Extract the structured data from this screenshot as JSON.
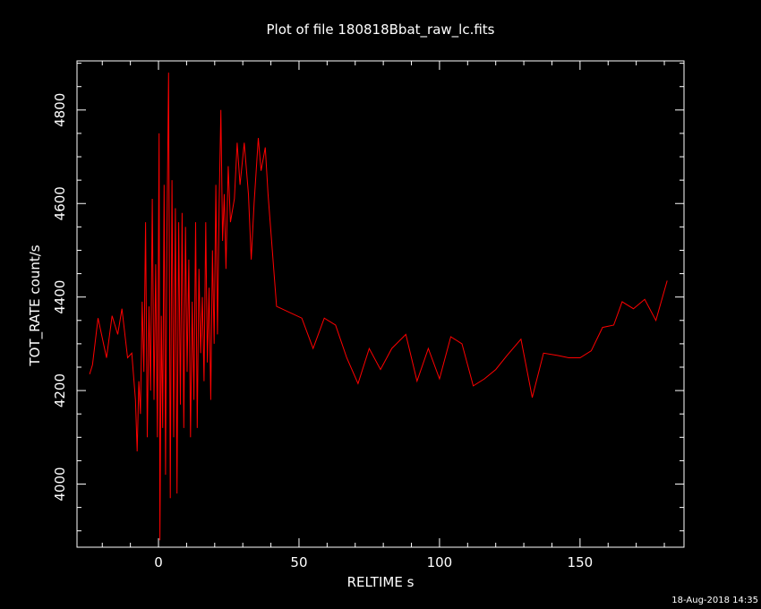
{
  "chart_data": {
    "type": "line",
    "title": "Plot of file 180818Bbat_raw_lc.fits",
    "xlabel": "RELTIME  s",
    "ylabel": "TOT_RATE  count/s",
    "timestamp": "18-Aug-2018 14:35",
    "xlim": [
      -29,
      187
    ],
    "ylim": [
      3865,
      4905
    ],
    "xticks": [
      0,
      50,
      100,
      150
    ],
    "yticks": [
      4000,
      4200,
      4400,
      4600,
      4800
    ],
    "minor_x": 10,
    "minor_y": 50,
    "grid": false,
    "colors": {
      "background": "#000000",
      "axes": "#ffffff",
      "series": "#ff0000"
    },
    "series": [
      {
        "values": [
          [
            -24.5,
            4235
          ],
          [
            -23.5,
            4255
          ],
          [
            -21.5,
            4355
          ],
          [
            -18.5,
            4270
          ],
          [
            -16.5,
            4360
          ],
          [
            -14.5,
            4320
          ],
          [
            -13,
            4375
          ],
          [
            -11,
            4270
          ],
          [
            -9.5,
            4280
          ],
          [
            -8.2,
            4180
          ],
          [
            -7.6,
            4070
          ],
          [
            -7.0,
            4220
          ],
          [
            -6.4,
            4150
          ],
          [
            -5.8,
            4390
          ],
          [
            -5.2,
            4240
          ],
          [
            -4.6,
            4560
          ],
          [
            -4.0,
            4100
          ],
          [
            -3.4,
            4380
          ],
          [
            -2.8,
            4200
          ],
          [
            -2.2,
            4610
          ],
          [
            -1.6,
            4180
          ],
          [
            -1.0,
            4470
          ],
          [
            -0.4,
            4100
          ],
          [
            0.2,
            4750
          ],
          [
            0.5,
            3880
          ],
          [
            1.0,
            4360
          ],
          [
            1.5,
            4120
          ],
          [
            2.0,
            4640
          ],
          [
            2.5,
            4020
          ],
          [
            3.0,
            4520
          ],
          [
            3.6,
            4880
          ],
          [
            4.2,
            3970
          ],
          [
            4.8,
            4650
          ],
          [
            5.4,
            4100
          ],
          [
            6.0,
            4590
          ],
          [
            6.6,
            3980
          ],
          [
            7.2,
            4560
          ],
          [
            7.8,
            4170
          ],
          [
            8.4,
            4580
          ],
          [
            9.0,
            4120
          ],
          [
            9.6,
            4550
          ],
          [
            10.2,
            4240
          ],
          [
            10.8,
            4480
          ],
          [
            11.4,
            4100
          ],
          [
            12.0,
            4390
          ],
          [
            12.6,
            4180
          ],
          [
            13.2,
            4560
          ],
          [
            13.8,
            4120
          ],
          [
            14.4,
            4460
          ],
          [
            15.0,
            4280
          ],
          [
            15.6,
            4400
          ],
          [
            16.2,
            4220
          ],
          [
            16.8,
            4560
          ],
          [
            17.4,
            4260
          ],
          [
            18.0,
            4420
          ],
          [
            18.6,
            4180
          ],
          [
            19.2,
            4500
          ],
          [
            19.8,
            4300
          ],
          [
            20.4,
            4640
          ],
          [
            21.0,
            4320
          ],
          [
            21.6,
            4600
          ],
          [
            22.2,
            4800
          ],
          [
            22.8,
            4520
          ],
          [
            23.4,
            4620
          ],
          [
            24.0,
            4460
          ],
          [
            24.8,
            4680
          ],
          [
            25.6,
            4560
          ],
          [
            27,
            4610
          ],
          [
            28,
            4730
          ],
          [
            29,
            4640
          ],
          [
            30.5,
            4730
          ],
          [
            32,
            4620
          ],
          [
            33,
            4480
          ],
          [
            34,
            4600
          ],
          [
            35.5,
            4740
          ],
          [
            36.5,
            4670
          ],
          [
            38,
            4720
          ],
          [
            39,
            4620
          ],
          [
            42,
            4380
          ],
          [
            51,
            4355
          ],
          [
            55,
            4290
          ],
          [
            59,
            4355
          ],
          [
            63,
            4340
          ],
          [
            67,
            4270
          ],
          [
            71,
            4215
          ],
          [
            75,
            4290
          ],
          [
            79,
            4245
          ],
          [
            83,
            4290
          ],
          [
            88,
            4320
          ],
          [
            92,
            4220
          ],
          [
            96,
            4290
          ],
          [
            100,
            4225
          ],
          [
            104,
            4315
          ],
          [
            108,
            4300
          ],
          [
            112,
            4210
          ],
          [
            116,
            4225
          ],
          [
            120,
            4245
          ],
          [
            124,
            4275
          ],
          [
            129,
            4310
          ],
          [
            133,
            4185
          ],
          [
            137,
            4280
          ],
          [
            142,
            4275
          ],
          [
            146,
            4270
          ],
          [
            150,
            4270
          ],
          [
            154,
            4285
          ],
          [
            158,
            4335
          ],
          [
            162,
            4340
          ],
          [
            165,
            4390
          ],
          [
            169,
            4375
          ],
          [
            173,
            4395
          ],
          [
            177,
            4350
          ],
          [
            181,
            4435
          ]
        ]
      }
    ]
  }
}
